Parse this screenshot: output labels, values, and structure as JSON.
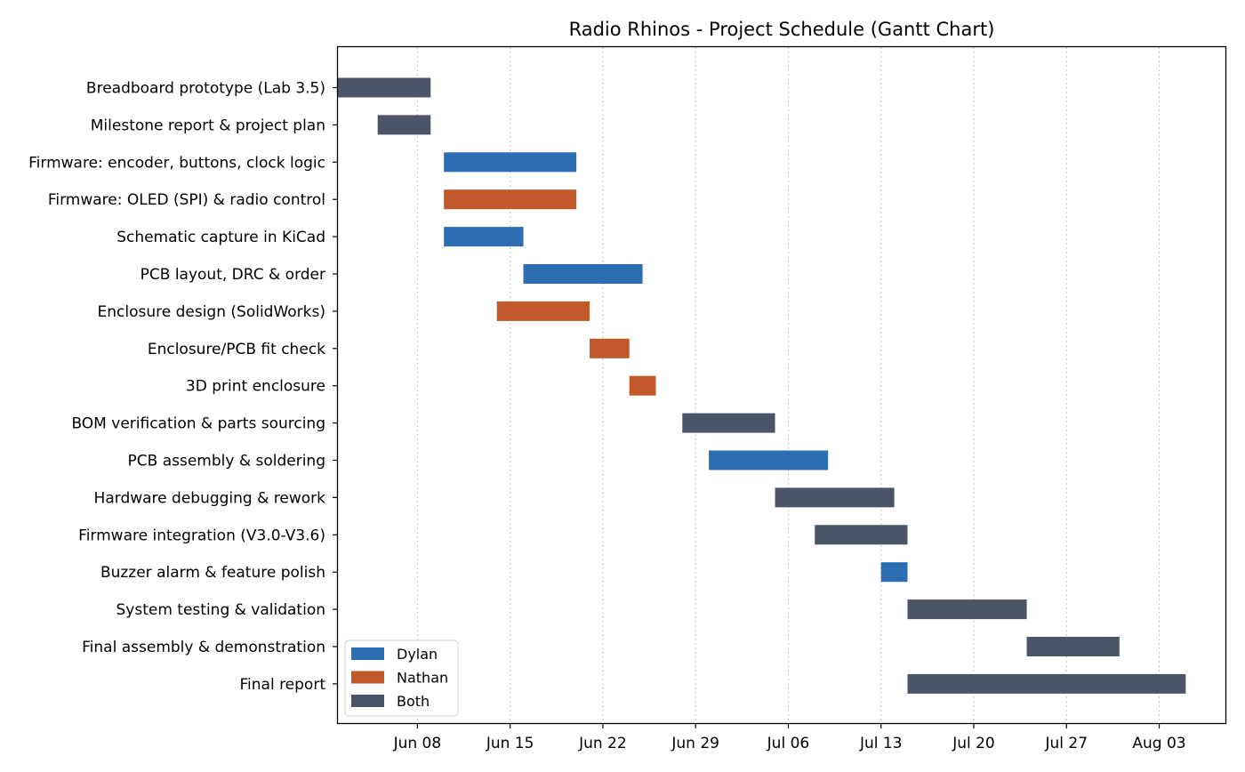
{
  "chart_data": {
    "type": "gantt",
    "title": "Radio Rhinos - Project Schedule (Gantt Chart)",
    "xlabel": "",
    "ylabel": "",
    "x_axis": {
      "type": "date",
      "range": [
        "2025-06-02",
        "2025-08-08"
      ],
      "ticks": [
        {
          "date": "2025-06-08",
          "label": "Jun 08"
        },
        {
          "date": "2025-06-15",
          "label": "Jun 15"
        },
        {
          "date": "2025-06-22",
          "label": "Jun 22"
        },
        {
          "date": "2025-06-29",
          "label": "Jun 29"
        },
        {
          "date": "2025-07-06",
          "label": "Jul 06"
        },
        {
          "date": "2025-07-13",
          "label": "Jul 13"
        },
        {
          "date": "2025-07-20",
          "label": "Jul 20"
        },
        {
          "date": "2025-07-27",
          "label": "Jul 27"
        },
        {
          "date": "2025-08-03",
          "label": "Aug 03"
        }
      ],
      "grid": "vertical dotted"
    },
    "legend": {
      "placement": "lower-left",
      "entries": [
        {
          "name": "Dylan",
          "color": "#2c6db4"
        },
        {
          "name": "Nathan",
          "color": "#c0582a"
        },
        {
          "name": "Both",
          "color": "#4a5568"
        }
      ]
    },
    "tasks": [
      {
        "name": "Breadboard prototype (Lab 3.5)",
        "start": "2025-06-02",
        "end": "2025-06-09",
        "owner": "Both"
      },
      {
        "name": "Milestone report & project plan",
        "start": "2025-06-05",
        "end": "2025-06-09",
        "owner": "Both"
      },
      {
        "name": "Firmware: encoder, buttons, clock logic",
        "start": "2025-06-10",
        "end": "2025-06-20",
        "owner": "Dylan"
      },
      {
        "name": "Firmware: OLED (SPI) & radio control",
        "start": "2025-06-10",
        "end": "2025-06-20",
        "owner": "Nathan"
      },
      {
        "name": "Schematic capture in KiCad",
        "start": "2025-06-10",
        "end": "2025-06-16",
        "owner": "Dylan"
      },
      {
        "name": "PCB layout, DRC & order",
        "start": "2025-06-16",
        "end": "2025-06-25",
        "owner": "Dylan"
      },
      {
        "name": "Enclosure design (SolidWorks)",
        "start": "2025-06-14",
        "end": "2025-06-21",
        "owner": "Nathan"
      },
      {
        "name": "Enclosure/PCB fit check",
        "start": "2025-06-21",
        "end": "2025-06-24",
        "owner": "Nathan"
      },
      {
        "name": "3D print enclosure",
        "start": "2025-06-24",
        "end": "2025-06-26",
        "owner": "Nathan"
      },
      {
        "name": "BOM verification & parts sourcing",
        "start": "2025-06-28",
        "end": "2025-07-05",
        "owner": "Both"
      },
      {
        "name": "PCB assembly & soldering",
        "start": "2025-06-30",
        "end": "2025-07-09",
        "owner": "Dylan"
      },
      {
        "name": "Hardware debugging & rework",
        "start": "2025-07-05",
        "end": "2025-07-14",
        "owner": "Both"
      },
      {
        "name": "Firmware integration (V3.0-V3.6)",
        "start": "2025-07-08",
        "end": "2025-07-15",
        "owner": "Both"
      },
      {
        "name": "Buzzer alarm & feature polish",
        "start": "2025-07-13",
        "end": "2025-07-15",
        "owner": "Dylan"
      },
      {
        "name": "System testing & validation",
        "start": "2025-07-15",
        "end": "2025-07-24",
        "owner": "Both"
      },
      {
        "name": "Final assembly & demonstration",
        "start": "2025-07-24",
        "end": "2025-07-31",
        "owner": "Both"
      },
      {
        "name": "Final report",
        "start": "2025-07-15",
        "end": "2025-08-05",
        "owner": "Both"
      }
    ]
  }
}
